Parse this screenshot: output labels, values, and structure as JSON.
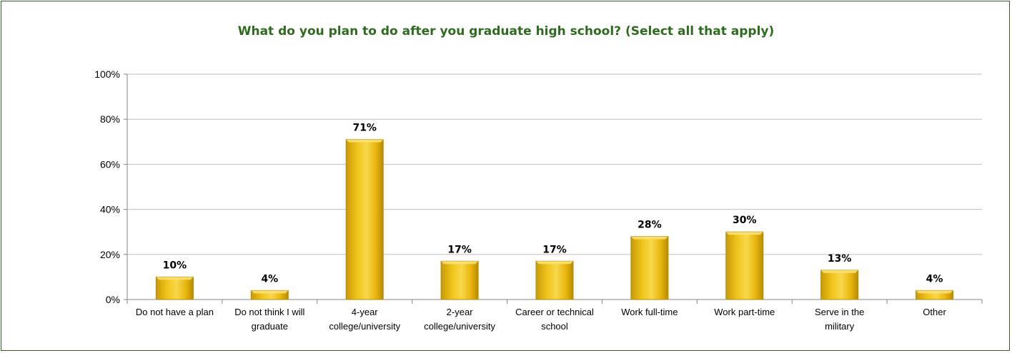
{
  "chart_data": {
    "type": "bar",
    "title": "What do you plan to do after you graduate high school? (Select all that apply)",
    "categories": [
      [
        "Do not have a plan"
      ],
      [
        "Do not think I will",
        "graduate"
      ],
      [
        "4-year",
        "college/university"
      ],
      [
        "2-year",
        "college/university"
      ],
      [
        "Career or technical",
        "school"
      ],
      [
        "Work full-time"
      ],
      [
        "Work part-time"
      ],
      [
        "Serve in the",
        "military"
      ],
      [
        "Other"
      ]
    ],
    "values": [
      10,
      4,
      71,
      17,
      17,
      28,
      30,
      13,
      4
    ],
    "data_labels": [
      "10%",
      "4%",
      "71%",
      "17%",
      "17%",
      "28%",
      "30%",
      "13%",
      "4%"
    ],
    "ylim": [
      0,
      100
    ],
    "y_ticks": [
      {
        "value": 0,
        "label": "0%"
      },
      {
        "value": 20,
        "label": "20%"
      },
      {
        "value": 40,
        "label": "40%"
      },
      {
        "value": 60,
        "label": "60%"
      },
      {
        "value": 80,
        "label": "80%"
      },
      {
        "value": 100,
        "label": "100%"
      }
    ],
    "xlabel": "",
    "ylabel": "",
    "grid": true,
    "colors": {
      "bar": "#e8b60c",
      "bar_highlight": "#fbe37a",
      "bar_shadow": "#b88a05",
      "title": "#2e6b1f",
      "border": "#2f5f22",
      "grid": "#bfbfbf",
      "axis": "#868686"
    }
  }
}
